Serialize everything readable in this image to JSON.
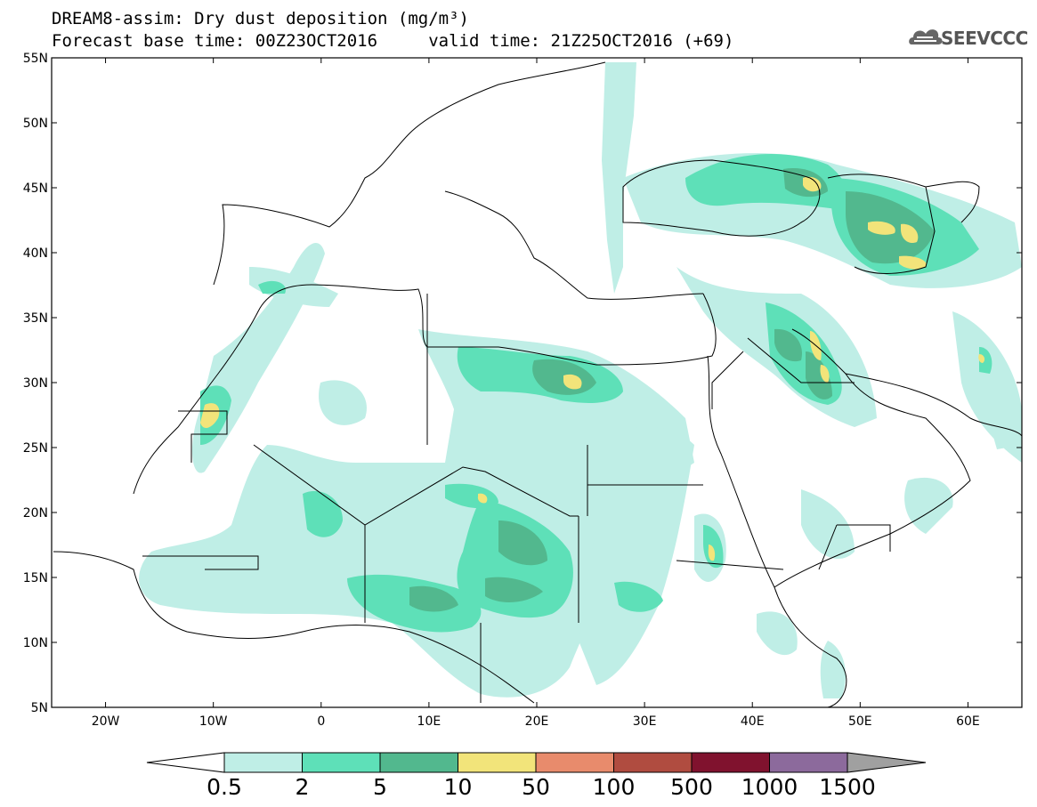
{
  "title": {
    "line1": "DREAM8-assim: Dry dust deposition (mg/m³)",
    "line2": "Forecast base time: 00Z23OCT2016     valid time: 21Z25OCT2016 (+69)"
  },
  "logo": {
    "text": "SEEVCCC",
    "icon": "cloud-icon"
  },
  "map": {
    "lon_range": [
      -25,
      65
    ],
    "lat_range": [
      5,
      55
    ],
    "lat_ticks": [
      {
        "value": 55,
        "label": "55N"
      },
      {
        "value": 50,
        "label": "50N"
      },
      {
        "value": 45,
        "label": "45N"
      },
      {
        "value": 40,
        "label": "40N"
      },
      {
        "value": 35,
        "label": "35N"
      },
      {
        "value": 30,
        "label": "30N"
      },
      {
        "value": 25,
        "label": "25N"
      },
      {
        "value": 20,
        "label": "20N"
      },
      {
        "value": 15,
        "label": "15N"
      },
      {
        "value": 10,
        "label": "10N"
      },
      {
        "value": 5,
        "label": "5N"
      }
    ],
    "lon_ticks": [
      {
        "value": -20,
        "label": "20W"
      },
      {
        "value": -10,
        "label": "10W"
      },
      {
        "value": 0,
        "label": "0"
      },
      {
        "value": 10,
        "label": "10E"
      },
      {
        "value": 20,
        "label": "20E"
      },
      {
        "value": 30,
        "label": "30E"
      },
      {
        "value": 40,
        "label": "40E"
      },
      {
        "value": 50,
        "label": "50E"
      },
      {
        "value": 60,
        "label": "60E"
      }
    ]
  },
  "colorbar": {
    "labels": [
      "0.5",
      "2",
      "5",
      "10",
      "50",
      "100",
      "500",
      "1000",
      "1500"
    ],
    "colors": [
      "#ffffff",
      "#bfeee6",
      "#5ee0b8",
      "#52b88e",
      "#f2e47a",
      "#e88b6c",
      "#b04c40",
      "#80122e",
      "#8c6a9c",
      "#a0a0a0"
    ]
  }
}
